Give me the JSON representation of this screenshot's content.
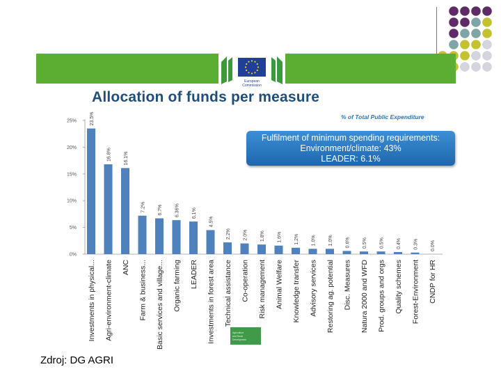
{
  "logo_text": [
    "European",
    "Commission"
  ],
  "title": "Allocation of funds per measure",
  "y_unit_label": "% of Total Public Expenditure",
  "callout": {
    "line1": "Fulfilment of minimum spending requirements:",
    "line2": "Environment/climate: 43%",
    "line3": "LEADER: 6.1%"
  },
  "source": "Zdroj: DG AGRI",
  "badge_text": [
    "Agriculture",
    "and Rural",
    "Development"
  ],
  "colors": {
    "bar": "#4f81bd",
    "green_band": "#5aae32",
    "title": "#1f4e79",
    "callout": "#2a7bc6",
    "dot_purple": "#5e2b66",
    "dot_teal": "#7ea6a6",
    "dot_olive": "#c2c232",
    "dot_lightgray": "#d4d4de"
  },
  "chart_data": {
    "type": "bar",
    "categories": [
      "Investments in physical...",
      "Agri-environment-climate",
      "ANC",
      "Farm & business...",
      "Basic services and village...",
      "Organic farming",
      "LEADER",
      "Investments in forest area",
      "Technical assistance",
      "Co-operation",
      "Risk management",
      "Animal Welfare",
      "Knowledge transfer",
      "Advisory services",
      "Restoring ag. potential",
      "Disc. Measures",
      "Natura 2000 and WFD",
      "Prod. groups and orgs",
      "Quality schemes",
      "Forest-Environment",
      "CNDP for HR"
    ],
    "values": [
      23.5,
      16.8,
      16.1,
      7.2,
      6.7,
      6.36,
      6.1,
      4.5,
      2.2,
      2.0,
      1.8,
      1.6,
      1.2,
      1.0,
      1.0,
      0.6,
      0.5,
      0.5,
      0.4,
      0.3,
      0.0
    ],
    "value_labels": [
      "23.5%",
      "16.8%",
      "16.1%",
      "7.2%",
      "6.7%",
      "6.36%",
      "6.1%",
      "4.5%",
      "2.2%",
      "2.0%",
      "1.8%",
      "1.6%",
      "1.2%",
      "1.0%",
      "1.0%",
      "0.6%",
      "0.5%",
      "0.5%",
      "0.4%",
      "0.3%",
      "0.0%"
    ],
    "y_ticks": [
      "0%",
      "5%",
      "10%",
      "15%",
      "20%",
      "25%"
    ],
    "y_tick_values": [
      0,
      5,
      10,
      15,
      20,
      25
    ],
    "ylim": [
      0,
      25
    ],
    "grid": false
  }
}
